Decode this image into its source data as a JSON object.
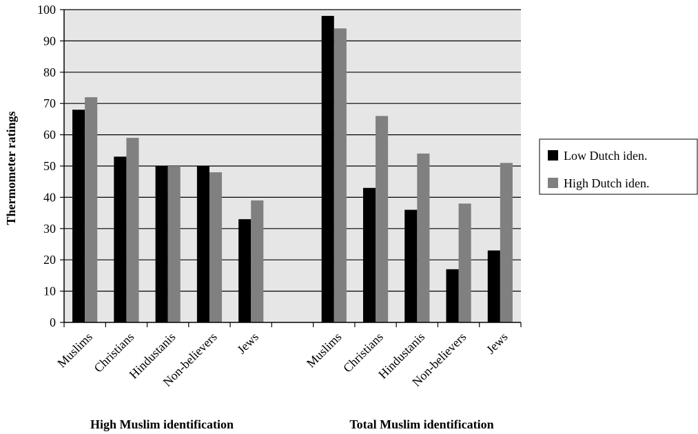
{
  "chart_data": {
    "type": "bar",
    "ylabel": "Thermometer ratings",
    "ylim": [
      0,
      100
    ],
    "yticks": [
      0,
      10,
      20,
      30,
      40,
      50,
      60,
      70,
      80,
      90,
      100
    ],
    "grid": true,
    "legend_position": "right",
    "groups": [
      {
        "label": "High Muslim identification",
        "categories": [
          "Muslims",
          "Christians",
          "Hindustanis",
          "Non-believers",
          "Jews"
        ]
      },
      {
        "label": "Total Muslim identification",
        "categories": [
          "Muslims",
          "Christians",
          "Hindustanis",
          "Non-believers",
          "Jews"
        ]
      }
    ],
    "series": [
      {
        "name": "Low Dutch iden.",
        "color": "#000000",
        "values": [
          [
            68,
            53,
            50,
            50,
            33
          ],
          [
            98,
            43,
            36,
            17,
            23
          ]
        ]
      },
      {
        "name": "High Dutch iden.",
        "color": "#808080",
        "values": [
          [
            72,
            59,
            50,
            48,
            39
          ],
          [
            94,
            66,
            54,
            38,
            51
          ]
        ]
      }
    ],
    "plot_background": "#e6e6e6"
  }
}
